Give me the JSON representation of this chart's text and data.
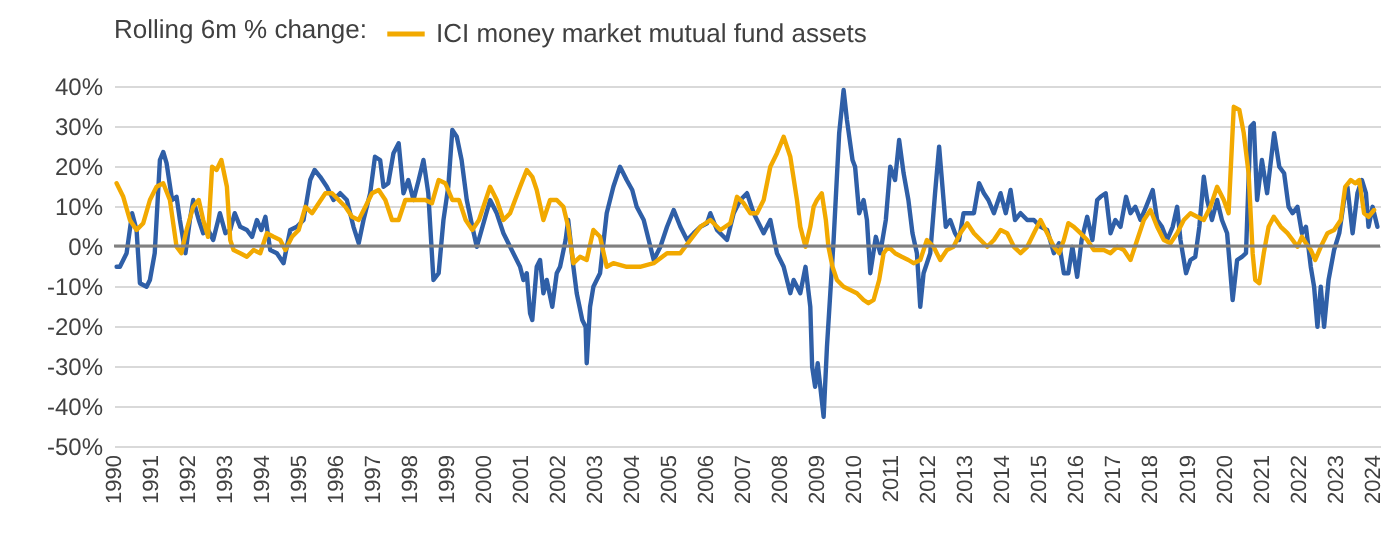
{
  "chart_data": {
    "type": "line",
    "legend_title": "Rolling 6m % change:",
    "legend": "top left",
    "grid": "y",
    "xlim": [
      1990,
      2024.2
    ],
    "xticks": [
      1990,
      1991,
      1992,
      1993,
      1994,
      1995,
      1996,
      1997,
      1998,
      1999,
      2000,
      2001,
      2002,
      2003,
      2004,
      2005,
      2006,
      2007,
      2008,
      2009,
      2010,
      2011,
      2012,
      2013,
      2014,
      2015,
      2016,
      2017,
      2018,
      2019,
      2020,
      2021,
      2022,
      2023,
      2024
    ],
    "ylim": [
      -50,
      40
    ],
    "yticks": [
      {
        "value": -50,
        "label": "-50%"
      },
      {
        "value": -40,
        "label": "-40%"
      },
      {
        "value": -30,
        "label": "-30%"
      },
      {
        "value": -20,
        "label": "-20%"
      },
      {
        "value": -10,
        "label": "-10%"
      },
      {
        "value": 0,
        "label": "0%"
      },
      {
        "value": 10,
        "label": "10%"
      },
      {
        "value": 20,
        "label": "20%"
      },
      {
        "value": 30,
        "label": "30%"
      },
      {
        "value": 40,
        "label": "40%"
      }
    ],
    "ref_lines": [
      {
        "axis": "y",
        "value": 0,
        "color": "#808080"
      }
    ],
    "series": [
      {
        "color": "#2f5fa7",
        "x": [
          1990.07,
          1990.16,
          1990.34,
          1990.49,
          1990.61,
          1990.7,
          1990.88,
          1990.97,
          1991.1,
          1991.24,
          1991.33,
          1991.42,
          1991.57,
          1991.69,
          1991.78,
          1991.93,
          1992.05,
          1992.14,
          1992.29,
          1992.41,
          1992.5,
          1992.68,
          1992.86,
          1993.01,
          1993.14,
          1993.26,
          1993.41,
          1993.59,
          1993.73,
          1993.86,
          1993.98,
          1994.09,
          1994.22,
          1994.4,
          1994.58,
          1994.76,
          1994.94,
          1995.12,
          1995.3,
          1995.42,
          1995.57,
          1995.75,
          1995.93,
          1996.11,
          1996.29,
          1996.47,
          1996.61,
          1996.74,
          1996.92,
          1997.05,
          1997.19,
          1997.28,
          1997.41,
          1997.55,
          1997.69,
          1997.82,
          1997.95,
          1998.09,
          1998.23,
          1998.36,
          1998.49,
          1998.63,
          1998.77,
          1998.9,
          1999.03,
          1999.14,
          1999.26,
          1999.39,
          1999.53,
          1999.68,
          1999.8,
          2000.16,
          2000.34,
          2000.52,
          2000.7,
          2000.97,
          2001.06,
          2001.15,
          2001.24,
          2001.3,
          2001.42,
          2001.51,
          2001.6,
          2001.69,
          2001.84,
          2001.96,
          2002.05,
          2002.2,
          2002.27,
          2002.41,
          2002.5,
          2002.65,
          2002.74,
          2002.77,
          2002.86,
          2002.95,
          2003.13,
          2003.31,
          2003.49,
          2003.67,
          2003.85,
          2004.0,
          2004.12,
          2004.31,
          2004.58,
          2004.76,
          2004.94,
          2005.12,
          2005.3,
          2005.48,
          2005.66,
          2005.84,
          2006.02,
          2006.11,
          2006.29,
          2006.56,
          2006.74,
          2006.92,
          2007.1,
          2007.28,
          2007.55,
          2007.73,
          2007.91,
          2008.09,
          2008.27,
          2008.36,
          2008.54,
          2008.68,
          2008.81,
          2008.86,
          2008.94,
          2009.01,
          2009.08,
          2009.17,
          2009.26,
          2009.35,
          2009.44,
          2009.59,
          2009.71,
          2009.8,
          2009.95,
          2010.02,
          2010.13,
          2010.25,
          2010.34,
          2010.43,
          2010.58,
          2010.7,
          2010.85,
          2010.97,
          2011.1,
          2011.21,
          2011.33,
          2011.46,
          2011.57,
          2011.69,
          2011.78,
          2011.87,
          2011.96,
          2012.05,
          2012.18,
          2012.29,
          2012.38,
          2012.47,
          2012.59,
          2012.72,
          2012.83,
          2012.95,
          2013.14,
          2013.23,
          2013.37,
          2013.5,
          2013.62,
          2013.77,
          2013.95,
          2014.09,
          2014.22,
          2014.34,
          2014.49,
          2014.67,
          2014.85,
          2015.03,
          2015.21,
          2015.39,
          2015.53,
          2015.66,
          2015.78,
          2015.89,
          2016.02,
          2016.14,
          2016.29,
          2016.43,
          2016.56,
          2016.65,
          2016.79,
          2016.92,
          2017.05,
          2017.19,
          2017.34,
          2017.46,
          2017.59,
          2017.73,
          2017.88,
          2018.06,
          2018.18,
          2018.31,
          2018.45,
          2018.6,
          2018.72,
          2018.81,
          2018.96,
          2019.08,
          2019.21,
          2019.32,
          2019.44,
          2019.53,
          2019.66,
          2019.8,
          2019.93,
          2020.07,
          2020.22,
          2020.34,
          2020.47,
          2020.58,
          2020.7,
          2020.79,
          2020.88,
          2021.01,
          2021.15,
          2021.34,
          2021.48,
          2021.61,
          2021.73,
          2021.84,
          2021.97,
          2022.09,
          2022.2,
          2022.33,
          2022.42,
          2022.51,
          2022.6,
          2022.69,
          2022.81,
          2022.96,
          2023.1,
          2023.23,
          2023.32,
          2023.46,
          2023.59,
          2023.71,
          2023.82,
          2023.89,
          2024.0,
          2024.13
        ],
        "values": [
          -5.2,
          -5.2,
          -1.8,
          8.2,
          4,
          -9.3,
          -10.2,
          -8.5,
          -1.8,
          21.5,
          23.5,
          20.7,
          11.5,
          12.3,
          6.5,
          -1.8,
          6.5,
          11.5,
          6.5,
          3.2,
          4.8,
          1.5,
          8.2,
          3.2,
          4,
          8.2,
          4.8,
          4,
          2.3,
          6.5,
          4,
          7.3,
          -1,
          -1.8,
          -4.3,
          4,
          4.8,
          6.5,
          16.5,
          19,
          17.3,
          14.8,
          11.5,
          13.2,
          11.5,
          4.8,
          0.7,
          6.5,
          13.2,
          22.3,
          21.5,
          14.8,
          15.7,
          23.2,
          25.7,
          13.2,
          16.5,
          11.5,
          16.5,
          21.5,
          13.2,
          -8.5,
          -6.8,
          6.5,
          14.8,
          29,
          27.3,
          21.5,
          11.5,
          4.8,
          -0.2,
          11.5,
          8.2,
          3.2,
          -0.2,
          -5.2,
          -8.5,
          -6.8,
          -16.8,
          -18.5,
          -5.2,
          -3.5,
          -11.8,
          -8.5,
          -15.2,
          -6.8,
          -5.2,
          1.5,
          6.5,
          -5.2,
          -11.8,
          -18.5,
          -20.2,
          -29.3,
          -15.2,
          -10.2,
          -6.8,
          8.2,
          14.8,
          19.8,
          16.5,
          14,
          9.8,
          6.5,
          -3.5,
          -0.2,
          4.8,
          9,
          4.8,
          1.5,
          3.2,
          4.8,
          5.7,
          8.2,
          4,
          1.5,
          8.2,
          11.5,
          13.2,
          8.2,
          3.2,
          6.5,
          -1.8,
          -5.2,
          -11.8,
          -8.5,
          -11.8,
          -5.2,
          -15.2,
          -30.2,
          -35.2,
          -29.3,
          -35.2,
          -42.7,
          -25.2,
          -11.8,
          1.5,
          28.2,
          39,
          31.5,
          21.5,
          19.8,
          8.2,
          11.5,
          6.5,
          -6.8,
          2.3,
          -1.8,
          6.5,
          19.8,
          16.5,
          26.5,
          18.2,
          11.5,
          3.2,
          -1.8,
          -15.2,
          -6.8,
          -4.3,
          -1.8,
          13.2,
          24.8,
          14.8,
          4.8,
          6.5,
          3.2,
          1.5,
          8.2,
          8.2,
          8.2,
          15.7,
          13.2,
          11.5,
          8.2,
          13.2,
          8.2,
          14,
          6.5,
          8.2,
          6.5,
          6.5,
          4.8,
          4,
          -1.8,
          0.7,
          -6.8,
          -6.8,
          -0.2,
          -7.7,
          1.5,
          7.3,
          1.5,
          11.5,
          12.3,
          13.2,
          3.2,
          6.5,
          4.8,
          12.3,
          8.2,
          9.8,
          6.5,
          9.8,
          14,
          6.5,
          4.8,
          1.5,
          4.8,
          9.8,
          1.5,
          -6.8,
          -3.5,
          -2.7,
          4.8,
          17.3,
          11.5,
          6.5,
          11.5,
          6.5,
          3.2,
          -13.5,
          -3.5,
          -2.7,
          -1.8,
          29.8,
          30.7,
          11.5,
          21.5,
          13.2,
          28.2,
          19.8,
          18.2,
          9.8,
          8.2,
          9.8,
          3.2,
          4.8,
          -5.2,
          -10.2,
          -20.2,
          -10.2,
          -20.2,
          -8.5,
          -1,
          3.2,
          11.5,
          14.8,
          3.2,
          13.2,
          16.5,
          13.2,
          4.8,
          9.8,
          4.8
        ]
      },
      {
        "name": "ICI money market mutual fund assets",
        "color": "#f2a900",
        "x": [
          1990.07,
          1990.25,
          1990.43,
          1990.61,
          1990.79,
          1990.97,
          1991.15,
          1991.33,
          1991.51,
          1991.69,
          1991.82,
          1991.96,
          1992.14,
          1992.29,
          1992.41,
          1992.54,
          1992.65,
          1992.77,
          1992.9,
          1993.05,
          1993.14,
          1993.23,
          1993.41,
          1993.59,
          1993.77,
          1993.95,
          1994.13,
          1994.31,
          1994.49,
          1994.63,
          1994.81,
          1994.99,
          1995.17,
          1995.35,
          1995.53,
          1995.71,
          1995.89,
          1996.07,
          1996.25,
          1996.43,
          1996.61,
          1996.79,
          1996.97,
          1997.15,
          1997.33,
          1997.51,
          1997.69,
          1997.87,
          1998.05,
          1998.23,
          1998.41,
          1998.59,
          1998.77,
          1998.95,
          1999.14,
          1999.32,
          1999.5,
          1999.68,
          1999.86,
          2000.16,
          2000.34,
          2000.52,
          2000.7,
          2000.97,
          2001.15,
          2001.3,
          2001.42,
          2001.6,
          2001.78,
          2001.96,
          2002.14,
          2002.27,
          2002.41,
          2002.59,
          2002.77,
          2002.95,
          2003.13,
          2003.31,
          2003.49,
          2003.85,
          2004.21,
          2004.58,
          2004.94,
          2005.3,
          2005.57,
          2005.84,
          2006.11,
          2006.38,
          2006.65,
          2006.83,
          2007.01,
          2007.19,
          2007.37,
          2007.55,
          2007.73,
          2007.91,
          2008.09,
          2008.27,
          2008.45,
          2008.54,
          2008.68,
          2008.81,
          2008.9,
          2008.99,
          2009.12,
          2009.23,
          2009.3,
          2009.41,
          2009.53,
          2009.71,
          2009.89,
          2010.07,
          2010.25,
          2010.38,
          2010.52,
          2010.67,
          2010.79,
          2010.92,
          2011.1,
          2011.28,
          2011.46,
          2011.6,
          2011.78,
          2011.96,
          2012.14,
          2012.32,
          2012.5,
          2012.68,
          2012.86,
          2013.05,
          2013.23,
          2013.41,
          2013.59,
          2013.77,
          2013.95,
          2014.13,
          2014.31,
          2014.49,
          2014.67,
          2014.85,
          2015.03,
          2015.21,
          2015.39,
          2015.53,
          2015.66,
          2015.78,
          2015.93,
          2016.11,
          2016.29,
          2016.47,
          2016.65,
          2016.74,
          2016.92,
          2017.1,
          2017.28,
          2017.46,
          2017.64,
          2017.82,
          2018.0,
          2018.18,
          2018.36,
          2018.54,
          2018.72,
          2018.9,
          2019.08,
          2019.26,
          2019.44,
          2019.62,
          2019.8,
          2019.98,
          2020.11,
          2020.25,
          2020.4,
          2020.52,
          2020.65,
          2020.76,
          2020.83,
          2020.94,
          2021.06,
          2021.19,
          2021.33,
          2021.52,
          2021.7,
          2021.84,
          2021.97,
          2022.09,
          2022.2,
          2022.33,
          2022.45,
          2022.6,
          2022.78,
          2022.96,
          2023.14,
          2023.26,
          2023.41,
          2023.53,
          2023.64,
          2023.77,
          2023.89,
          2024.04
        ],
        "values": [
          15.7,
          12.3,
          6.5,
          4,
          5.7,
          11.5,
          14.8,
          15.7,
          11.5,
          -0.2,
          -1.8,
          4,
          9.8,
          11.5,
          6.5,
          2.3,
          19.8,
          19,
          21.5,
          14.8,
          1.5,
          -1,
          -1.8,
          -2.7,
          -1,
          -1.8,
          3.2,
          2.3,
          1.5,
          -1,
          2.3,
          4,
          9.8,
          8.2,
          10.7,
          13.2,
          13.2,
          11.5,
          9.8,
          7.3,
          6.5,
          9.8,
          13.2,
          14,
          11.5,
          6.5,
          6.5,
          11.5,
          11.5,
          11.5,
          11.5,
          10.7,
          16.5,
          15.7,
          11.5,
          11.5,
          6.5,
          4,
          6.5,
          14.8,
          11.5,
          6.5,
          8.2,
          14.8,
          19,
          17.3,
          14,
          6.5,
          11.5,
          11.5,
          9.8,
          4.8,
          -4.3,
          -2.7,
          -3.5,
          4,
          2.3,
          -5.2,
          -4.3,
          -5.2,
          -5.2,
          -4.3,
          -1.8,
          -1.8,
          1.5,
          4.8,
          6.5,
          4,
          5.7,
          12.3,
          10.7,
          8.2,
          8.2,
          11.5,
          19.8,
          23.2,
          27.3,
          22.3,
          11.5,
          4.8,
          -0.2,
          4.8,
          9.8,
          11.5,
          13.2,
          6.5,
          -0.2,
          -5.2,
          -8.5,
          -10.2,
          -11,
          -11.8,
          -13.5,
          -14.3,
          -13.5,
          -8.5,
          -1.8,
          -0.2,
          -1.8,
          -2.7,
          -3.5,
          -4.3,
          -3.5,
          1.5,
          -0.2,
          -3.5,
          -1,
          -0.2,
          3.2,
          5.7,
          3.2,
          1.5,
          -0.2,
          1.5,
          4,
          3.2,
          -0.2,
          -1.8,
          -0.2,
          3.2,
          6.5,
          3.2,
          -0.2,
          -1.8,
          1.5,
          5.7,
          4.8,
          3.2,
          1.5,
          -1,
          -1,
          -1,
          -1.8,
          -0.2,
          -1,
          -3.5,
          1.5,
          6.5,
          9,
          4.8,
          1.5,
          0.7,
          3.2,
          6.5,
          8.2,
          7.3,
          6.5,
          9.8,
          14.8,
          11.5,
          8.2,
          34.8,
          34,
          28.2,
          18.2,
          -1.8,
          -8.5,
          -9.3,
          -1.8,
          4.8,
          7.3,
          4.8,
          3.2,
          1.5,
          -0.2,
          2.3,
          0.7,
          -1,
          -3.5,
          -0.2,
          3.2,
          4,
          6.5,
          14.8,
          16.5,
          15.7,
          16.5,
          8.2,
          7.3,
          9
        ]
      }
    ]
  }
}
